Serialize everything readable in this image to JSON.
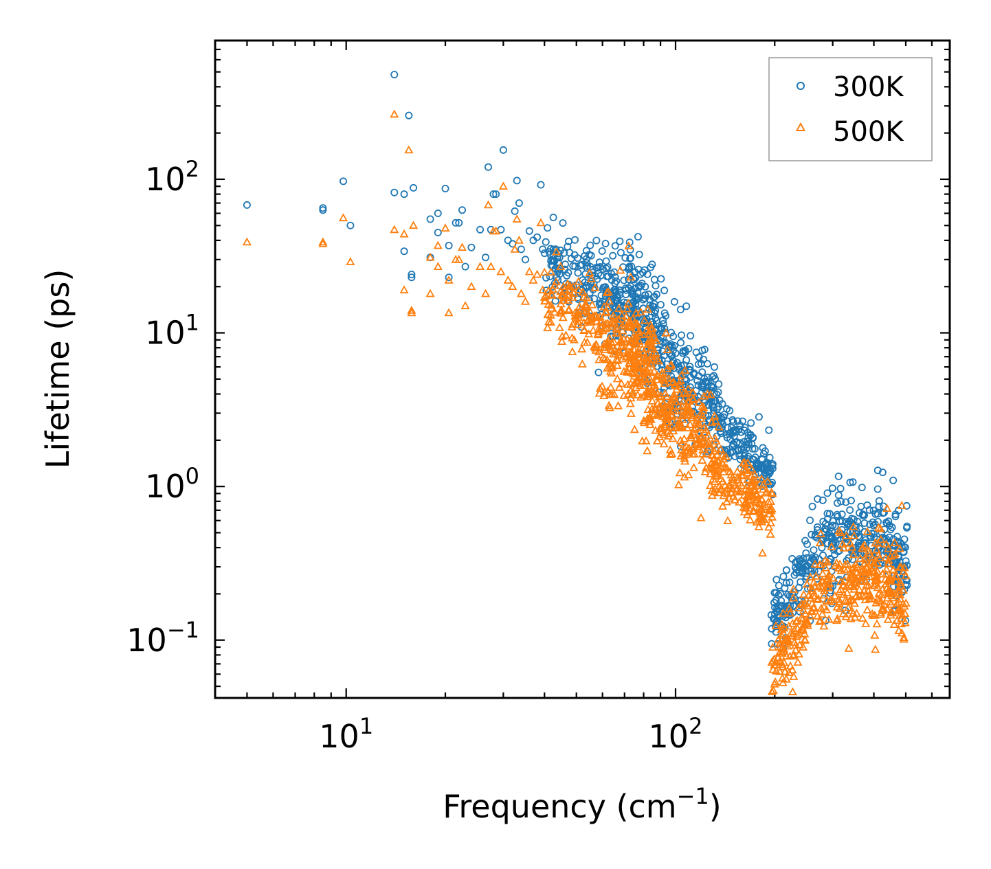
{
  "chart_data": {
    "type": "scatter",
    "title": "",
    "xlabel": "Frequency (cm",
    "xlabel_exp": "−1",
    "xlabel_close": ")",
    "ylabel": "Lifetime (ps)",
    "xscale": "log",
    "yscale": "log",
    "xlim": [
      4,
      680
    ],
    "ylim": [
      0.042,
      800
    ],
    "x_ticks": [
      {
        "value": 10,
        "base": "10",
        "exp": "1"
      },
      {
        "value": 100,
        "base": "10",
        "exp": "2"
      }
    ],
    "y_ticks": [
      {
        "value": 0.1,
        "base": "10",
        "exp": "−1"
      },
      {
        "value": 1,
        "base": "10",
        "exp": "0"
      },
      {
        "value": 10,
        "base": "10",
        "exp": "1"
      },
      {
        "value": 100,
        "base": "10",
        "exp": "2"
      }
    ],
    "legend_position": "top-right",
    "series": [
      {
        "name": "300K",
        "marker": "circle",
        "color": "#1f77b4",
        "points": [
          [
            5.0,
            68
          ],
          [
            8.5,
            63
          ],
          [
            8.5,
            65
          ],
          [
            9.8,
            97
          ],
          [
            10.3,
            50
          ],
          [
            14.0,
            480
          ],
          [
            14.0,
            82
          ],
          [
            15.0,
            80
          ],
          [
            15.5,
            260
          ],
          [
            16.0,
            88
          ],
          [
            15.0,
            34
          ],
          [
            15.8,
            24
          ],
          [
            15.8,
            23
          ],
          [
            18.0,
            55
          ],
          [
            18.0,
            31
          ],
          [
            19.0,
            60
          ],
          [
            19.0,
            45
          ],
          [
            20.0,
            87
          ],
          [
            20.5,
            37
          ],
          [
            20.5,
            23
          ],
          [
            21.5,
            52
          ],
          [
            22.0,
            52
          ],
          [
            22.5,
            63
          ],
          [
            23.0,
            27
          ],
          [
            24.0,
            36
          ],
          [
            25.5,
            47
          ],
          [
            26.5,
            31
          ],
          [
            27.0,
            120
          ],
          [
            27.5,
            47
          ],
          [
            28.0,
            80
          ],
          [
            28.5,
            80
          ],
          [
            29.5,
            47
          ],
          [
            30.0,
            155
          ],
          [
            31.0,
            40
          ],
          [
            32.0,
            38
          ],
          [
            32.5,
            62
          ],
          [
            33.0,
            98
          ],
          [
            33.5,
            70
          ],
          [
            34.0,
            35
          ],
          [
            35.0,
            30
          ],
          [
            36.0,
            46
          ],
          [
            37.0,
            40
          ],
          [
            38.0,
            42
          ],
          [
            39.0,
            92
          ],
          [
            39.5,
            35
          ],
          [
            40.0,
            33
          ]
        ],
        "clusters": [
          {
            "x": [
              40,
              58
            ],
            "y_center": [
              30,
              20
            ],
            "spread": 0.38,
            "count": 110
          },
          {
            "x": [
              58,
              72
            ],
            "y_center": [
              18,
              16
            ],
            "spread": 0.45,
            "count": 110
          },
          {
            "x": [
              72,
              88
            ],
            "y_center": [
              18,
              10
            ],
            "spread": 0.55,
            "count": 160
          },
          {
            "x": [
              88,
              110
            ],
            "y_center": [
              8,
              4
            ],
            "spread": 0.55,
            "count": 130
          },
          {
            "x": [
              110,
              140
            ],
            "y_center": [
              5,
              2.6
            ],
            "spread": 0.45,
            "count": 120
          },
          {
            "x": [
              140,
              198
            ],
            "y_center": [
              2.2,
              1.2
            ],
            "spread": 0.28,
            "count": 130
          },
          {
            "x": [
              195,
              260
            ],
            "y_center": [
              0.12,
              0.35
            ],
            "spread": 0.35,
            "count": 110
          },
          {
            "x": [
              260,
              400
            ],
            "y_center": [
              0.45,
              0.5
            ],
            "spread": 0.45,
            "count": 170
          },
          {
            "x": [
              400,
              505
            ],
            "y_center": [
              0.5,
              0.3
            ],
            "spread": 0.45,
            "count": 120
          }
        ]
      },
      {
        "name": "500K",
        "marker": "triangle",
        "color": "#ff7f0e",
        "points": [
          [
            5.0,
            39
          ],
          [
            8.5,
            38
          ],
          [
            8.5,
            39
          ],
          [
            9.8,
            56
          ],
          [
            10.3,
            29
          ],
          [
            14.0,
            265
          ],
          [
            14.0,
            47
          ],
          [
            15.0,
            19
          ],
          [
            15.0,
            44
          ],
          [
            15.5,
            155
          ],
          [
            16.0,
            50
          ],
          [
            15.8,
            14
          ],
          [
            15.8,
            13.5
          ],
          [
            18.0,
            31
          ],
          [
            18.0,
            18
          ],
          [
            19.0,
            37
          ],
          [
            19.0,
            27
          ],
          [
            20.0,
            48
          ],
          [
            20.5,
            22
          ],
          [
            20.5,
            13.5
          ],
          [
            21.5,
            30
          ],
          [
            22.0,
            30
          ],
          [
            22.5,
            36
          ],
          [
            23.0,
            15
          ],
          [
            24.0,
            20
          ],
          [
            25.5,
            27
          ],
          [
            26.5,
            18
          ],
          [
            27.0,
            68
          ],
          [
            27.5,
            27
          ],
          [
            28.0,
            46
          ],
          [
            28.5,
            46
          ],
          [
            29.5,
            25
          ],
          [
            30.0,
            90
          ],
          [
            31.0,
            22
          ],
          [
            32.0,
            20
          ],
          [
            32.5,
            35
          ],
          [
            33.0,
            55
          ],
          [
            33.5,
            40
          ],
          [
            34.0,
            18
          ],
          [
            35.0,
            16
          ],
          [
            36.0,
            25
          ],
          [
            37.0,
            22
          ],
          [
            38.0,
            24
          ],
          [
            39.0,
            52
          ],
          [
            39.5,
            19
          ],
          [
            40.0,
            17
          ]
        ],
        "clusters": [
          {
            "x": [
              40,
              58
            ],
            "y_center": [
              17,
              11
            ],
            "spread": 0.38,
            "count": 110
          },
          {
            "x": [
              58,
              72
            ],
            "y_center": [
              9,
              7
            ],
            "spread": 0.5,
            "count": 110
          },
          {
            "x": [
              72,
              88
            ],
            "y_center": [
              8,
              5
            ],
            "spread": 0.6,
            "count": 170
          },
          {
            "x": [
              88,
              110
            ],
            "y_center": [
              4.5,
              2.3
            ],
            "spread": 0.5,
            "count": 130
          },
          {
            "x": [
              110,
              140
            ],
            "y_center": [
              2.6,
              1.3
            ],
            "spread": 0.45,
            "count": 120
          },
          {
            "x": [
              140,
              198
            ],
            "y_center": [
              1.1,
              0.72
            ],
            "spread": 0.28,
            "count": 130
          },
          {
            "x": [
              195,
              260
            ],
            "y_center": [
              0.065,
              0.17
            ],
            "spread": 0.35,
            "count": 110
          },
          {
            "x": [
              260,
              400
            ],
            "y_center": [
              0.22,
              0.26
            ],
            "spread": 0.42,
            "count": 170
          },
          {
            "x": [
              400,
              505
            ],
            "y_center": [
              0.28,
              0.17
            ],
            "spread": 0.45,
            "count": 120
          }
        ]
      }
    ]
  }
}
